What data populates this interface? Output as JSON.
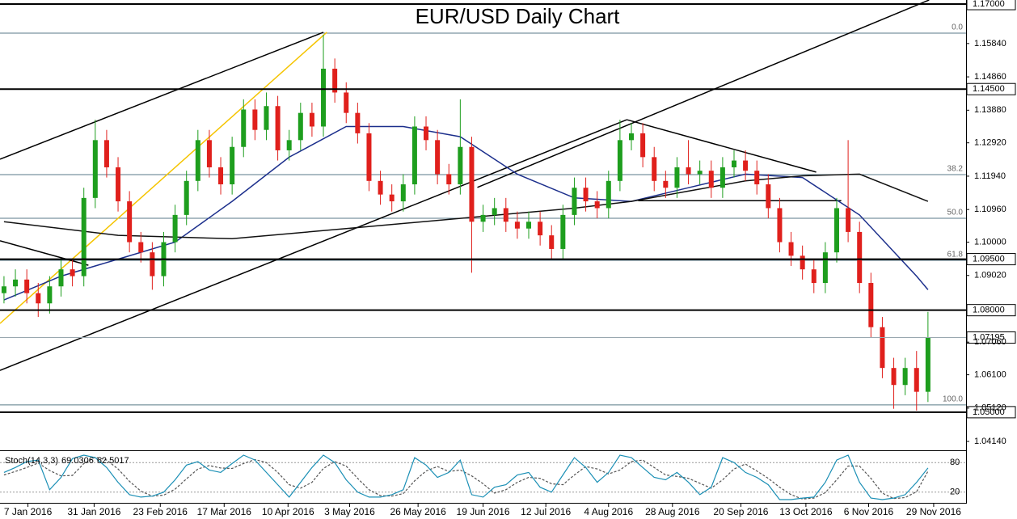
{
  "chart_data": {
    "type": "candlestick",
    "title": "EUR/USD Daily Chart",
    "xlim": [
      -0.35,
      84.34
    ],
    "xticks": [
      {
        "value": 2.1,
        "label": "7 Jan 2016"
      },
      {
        "value": 7.9,
        "label": "31 Jan 2016"
      },
      {
        "value": 13.7,
        "label": "23 Feb 2016"
      },
      {
        "value": 19.3,
        "label": "17 Mar 2016"
      },
      {
        "value": 24.9,
        "label": "10 Apr 2016"
      },
      {
        "value": 30.3,
        "label": "3 May 2016"
      },
      {
        "value": 36.3,
        "label": "26 May 2016"
      },
      {
        "value": 42.0,
        "label": "19 Jun 2016"
      },
      {
        "value": 47.5,
        "label": "12 Jul 2016"
      },
      {
        "value": 53.0,
        "label": "4 Aug 2016"
      },
      {
        "value": 58.6,
        "label": "28 Aug 2016"
      },
      {
        "value": 64.6,
        "label": "20 Sep 2016"
      },
      {
        "value": 70.3,
        "label": "13 Oct 2016"
      },
      {
        "value": 75.8,
        "label": "6 Nov 2016"
      },
      {
        "value": 81.5,
        "label": "29 Nov 2016"
      }
    ],
    "ylim": [
      1.0388,
      1.1712
    ],
    "yticks": [
      {
        "value": 1.1584,
        "label": "1.15840"
      },
      {
        "value": 1.1486,
        "label": "1.14860"
      },
      {
        "value": 1.1388,
        "label": "1.13880"
      },
      {
        "value": 1.1292,
        "label": "1.12920"
      },
      {
        "value": 1.1194,
        "label": "1.11940"
      },
      {
        "value": 1.1096,
        "label": "1.10960"
      },
      {
        "value": 1.1,
        "label": "1.10000"
      },
      {
        "value": 1.0902,
        "label": "1.09020"
      },
      {
        "value": 1.0706,
        "label": "1.07060"
      },
      {
        "value": 1.061,
        "label": "1.06100"
      },
      {
        "value": 1.0512,
        "label": "1.05120"
      },
      {
        "value": 1.0414,
        "label": "1.04140"
      }
    ],
    "up_color": "#1e9e1e",
    "down_color": "#e0201c",
    "open": [
      1.085,
      1.087,
      1.089,
      1.085,
      1.082,
      1.087,
      1.092,
      1.09,
      1.113,
      1.13,
      1.122,
      1.112,
      1.1,
      1.097,
      1.09,
      1.1,
      1.108,
      1.118,
      1.13,
      1.122,
      1.117,
      1.128,
      1.139,
      1.133,
      1.14,
      1.127,
      1.13,
      1.138,
      1.134,
      1.151,
      1.144,
      1.138,
      1.132,
      1.118,
      1.114,
      1.112,
      1.117,
      1.134,
      1.13,
      1.12,
      1.117,
      1.128,
      1.106,
      1.108,
      1.11,
      1.106,
      1.104,
      1.106,
      1.102,
      1.098,
      1.108,
      1.116,
      1.112,
      1.11,
      1.118,
      1.13,
      1.132,
      1.125,
      1.118,
      1.116,
      1.122,
      1.12,
      1.121,
      1.116,
      1.122,
      1.124,
      1.121,
      1.117,
      1.11,
      1.1,
      1.096,
      1.092,
      1.088,
      1.097,
      1.11,
      1.103,
      1.088,
      1.075,
      1.063,
      1.058,
      1.063,
      1.056
    ],
    "high": [
      1.09,
      1.092,
      1.092,
      1.088,
      1.09,
      1.095,
      1.095,
      1.116,
      1.136,
      1.133,
      1.125,
      1.115,
      1.103,
      1.1,
      1.103,
      1.111,
      1.121,
      1.133,
      1.133,
      1.125,
      1.131,
      1.142,
      1.142,
      1.144,
      1.143,
      1.133,
      1.141,
      1.141,
      1.161,
      1.154,
      1.147,
      1.141,
      1.135,
      1.121,
      1.117,
      1.12,
      1.137,
      1.137,
      1.133,
      1.123,
      1.142,
      1.131,
      1.111,
      1.113,
      1.113,
      1.109,
      1.109,
      1.109,
      1.105,
      1.111,
      1.119,
      1.119,
      1.115,
      1.121,
      1.136,
      1.135,
      1.135,
      1.128,
      1.121,
      1.125,
      1.13,
      1.124,
      1.124,
      1.125,
      1.127,
      1.127,
      1.124,
      1.12,
      1.113,
      1.103,
      1.099,
      1.095,
      1.1,
      1.113,
      1.13,
      1.106,
      1.091,
      1.078,
      1.066,
      1.066,
      1.068,
      1.0795
    ],
    "low": [
      1.082,
      1.084,
      1.082,
      1.078,
      1.079,
      1.084,
      1.087,
      1.087,
      1.11,
      1.119,
      1.109,
      1.097,
      1.094,
      1.086,
      1.087,
      1.097,
      1.105,
      1.115,
      1.119,
      1.114,
      1.114,
      1.125,
      1.13,
      1.13,
      1.124,
      1.124,
      1.127,
      1.131,
      1.131,
      1.141,
      1.135,
      1.129,
      1.115,
      1.111,
      1.109,
      1.109,
      1.114,
      1.127,
      1.117,
      1.114,
      1.114,
      1.091,
      1.103,
      1.105,
      1.103,
      1.101,
      1.101,
      1.099,
      1.095,
      1.095,
      1.105,
      1.109,
      1.107,
      1.107,
      1.115,
      1.127,
      1.122,
      1.115,
      1.113,
      1.113,
      1.117,
      1.117,
      1.113,
      1.113,
      1.119,
      1.118,
      1.114,
      1.107,
      1.097,
      1.093,
      1.089,
      1.085,
      1.085,
      1.094,
      1.1,
      1.085,
      1.072,
      1.06,
      1.051,
      1.055,
      1.0505,
      1.053
    ],
    "close": [
      1.087,
      1.089,
      1.085,
      1.082,
      1.087,
      1.092,
      1.09,
      1.113,
      1.13,
      1.122,
      1.112,
      1.1,
      1.097,
      1.09,
      1.1,
      1.108,
      1.118,
      1.13,
      1.122,
      1.117,
      1.128,
      1.139,
      1.133,
      1.14,
      1.127,
      1.13,
      1.138,
      1.134,
      1.151,
      1.144,
      1.138,
      1.132,
      1.118,
      1.114,
      1.112,
      1.117,
      1.134,
      1.13,
      1.12,
      1.117,
      1.128,
      1.106,
      1.108,
      1.11,
      1.106,
      1.104,
      1.106,
      1.102,
      1.098,
      1.108,
      1.116,
      1.112,
      1.11,
      1.118,
      1.13,
      1.132,
      1.125,
      1.118,
      1.116,
      1.122,
      1.12,
      1.121,
      1.116,
      1.122,
      1.124,
      1.121,
      1.117,
      1.11,
      1.1,
      1.096,
      1.092,
      1.088,
      1.097,
      1.11,
      1.103,
      1.088,
      1.075,
      1.063,
      1.058,
      1.063,
      1.056,
      1.072
    ],
    "moving_averages": [
      {
        "color": "#1c2f8c",
        "x": [
          0,
          5,
          10,
          15,
          20,
          25,
          30,
          35,
          40,
          45,
          50,
          55,
          60,
          65,
          70,
          75,
          80,
          81
        ],
        "values": [
          1.083,
          1.09,
          1.095,
          1.1,
          1.112,
          1.125,
          1.134,
          1.134,
          1.131,
          1.12,
          1.113,
          1.112,
          1.116,
          1.12,
          1.119,
          1.108,
          1.09,
          1.086
        ]
      },
      {
        "color": "#111111",
        "x": [
          0,
          10,
          20,
          30,
          40,
          50,
          55,
          60,
          65,
          70,
          75,
          81
        ],
        "values": [
          1.106,
          1.102,
          1.101,
          1.104,
          1.107,
          1.11,
          1.112,
          1.115,
          1.118,
          1.1195,
          1.12,
          1.112
        ]
      }
    ],
    "trendlines": [
      {
        "color": "#000000",
        "x": [
          -0.35,
          28
        ],
        "y": [
          1.1244,
          1.1617
        ]
      },
      {
        "color": "#000000",
        "x": [
          -0.35,
          54.6
        ],
        "y": [
          1.0623,
          1.136
        ]
      },
      {
        "color": "#000000",
        "x": [
          41.5,
          81.1
        ],
        "y": [
          1.1161,
          1.1712
        ]
      },
      {
        "color": "#f5c400",
        "x": [
          -0.35,
          28.3
        ],
        "y": [
          1.0761,
          1.1617
        ]
      },
      {
        "color": "#000000",
        "x": [
          -0.35,
          7.4
        ],
        "y": [
          1.1004,
          1.0932
        ]
      },
      {
        "color": "#000000",
        "x": [
          54.6,
          71.2
        ],
        "y": [
          1.136,
          1.1206
        ]
      },
      {
        "color": "#000000",
        "x": [
          55.6,
          73.4
        ],
        "y": [
          1.1122,
          1.1122
        ]
      }
    ],
    "levels": [
      {
        "value": 1.17,
        "label": "1.17000"
      },
      {
        "value": 1.145,
        "label": "1.14500"
      },
      {
        "value": 1.095,
        "label": "1.09500"
      },
      {
        "value": 1.08,
        "label": "1.08000"
      },
      {
        "value": 1.05,
        "label": "1.05000"
      }
    ],
    "current_price": {
      "value": 1.07195,
      "label": "1.07195"
    },
    "fibonacci": [
      {
        "value": 1.16145,
        "label": "0.0"
      },
      {
        "value": 1.11986,
        "label": "38.2"
      },
      {
        "value": 1.10702,
        "label": "50.0"
      },
      {
        "value": 1.09467,
        "label": "61.8"
      },
      {
        "value": 1.05213,
        "label": "100.0"
      }
    ],
    "stochastic": {
      "title": "Stoch(14,3,3)",
      "ylim": [
        0,
        100
      ],
      "yticks": [
        80,
        20
      ],
      "k_color": "#1a8fb5",
      "d_color": "#555555",
      "k": [
        60,
        70,
        82,
        85,
        25,
        50,
        88,
        95,
        90,
        70,
        40,
        15,
        10,
        12,
        20,
        45,
        75,
        82,
        65,
        60,
        78,
        95,
        85,
        60,
        35,
        10,
        40,
        70,
        95,
        80,
        45,
        20,
        10,
        10,
        15,
        25,
        90,
        75,
        50,
        60,
        85,
        15,
        10,
        30,
        35,
        55,
        60,
        30,
        20,
        55,
        90,
        70,
        40,
        60,
        95,
        90,
        70,
        50,
        45,
        60,
        40,
        15,
        30,
        90,
        80,
        60,
        50,
        35,
        5,
        5,
        8,
        10,
        40,
        85,
        95,
        40,
        8,
        5,
        8,
        15,
        40,
        69.0306
      ],
      "d": [
        55,
        62,
        70,
        79,
        64,
        53,
        54,
        78,
        91,
        85,
        67,
        42,
        22,
        12,
        14,
        26,
        47,
        67,
        74,
        69,
        68,
        78,
        86,
        80,
        60,
        35,
        28,
        40,
        68,
        82,
        73,
        48,
        25,
        13,
        12,
        17,
        43,
        63,
        72,
        62,
        65,
        53,
        37,
        18,
        25,
        40,
        50,
        48,
        37,
        35,
        55,
        72,
        67,
        57,
        65,
        82,
        85,
        70,
        55,
        52,
        48,
        38,
        28,
        45,
        67,
        77,
        63,
        48,
        30,
        15,
        6,
        8,
        19,
        45,
        73,
        73,
        48,
        18,
        7,
        9,
        21,
        62.5017
      ]
    }
  }
}
